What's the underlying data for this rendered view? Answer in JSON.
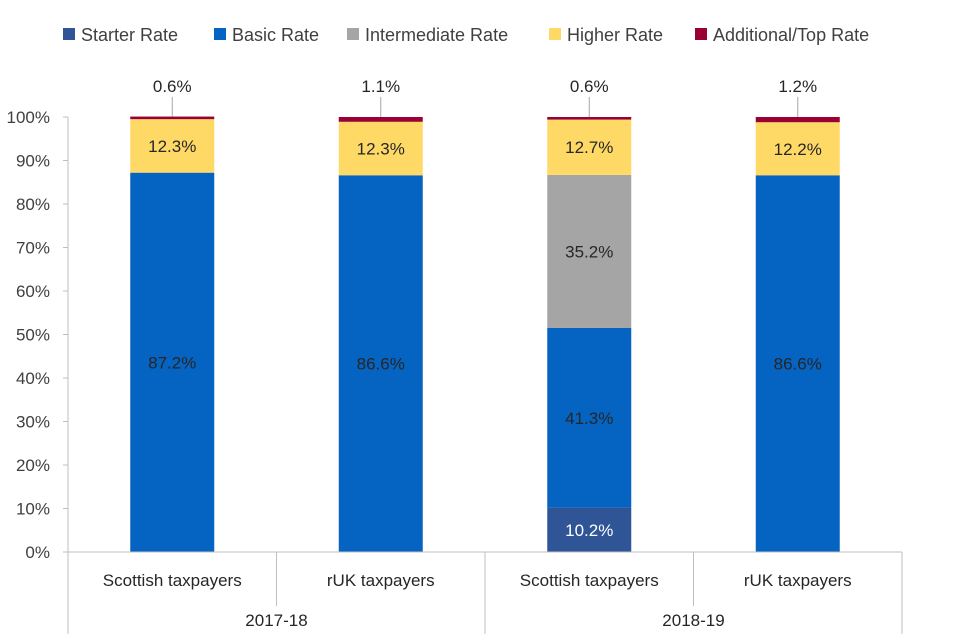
{
  "chart_data": {
    "type": "bar",
    "stacked": true,
    "title": "",
    "xlabel": "",
    "ylabel": "",
    "ylim": [
      0,
      100
    ],
    "y_ticks": [
      "0%",
      "10%",
      "20%",
      "30%",
      "40%",
      "50%",
      "60%",
      "70%",
      "80%",
      "90%",
      "100%"
    ],
    "legend_position": "top",
    "grid": false,
    "categories": [
      "Scottish taxpayers",
      "rUK taxpayers",
      "Scottish taxpayers",
      "rUK taxpayers"
    ],
    "groups": [
      {
        "label": "2017-18",
        "span": [
          0,
          1
        ]
      },
      {
        "label": "2018-19",
        "span": [
          2,
          3
        ]
      }
    ],
    "series": [
      {
        "name": "Starter Rate",
        "color": "#2f5597",
        "values": [
          0,
          0,
          10.2,
          0
        ],
        "labels": [
          "",
          "",
          "10.2%",
          ""
        ]
      },
      {
        "name": "Basic Rate",
        "color": "#0563c1",
        "values": [
          87.2,
          86.6,
          41.3,
          86.6
        ],
        "labels": [
          "87.2%",
          "86.6%",
          "41.3%",
          "86.6%"
        ]
      },
      {
        "name": "Intermediate Rate",
        "color": "#a5a5a5",
        "values": [
          0,
          0,
          35.2,
          0
        ],
        "labels": [
          "",
          "",
          "35.2%",
          ""
        ]
      },
      {
        "name": "Higher Rate",
        "color": "#ffd966",
        "values": [
          12.3,
          12.3,
          12.7,
          12.2
        ],
        "labels": [
          "12.3%",
          "12.3%",
          "12.7%",
          "12.2%"
        ]
      },
      {
        "name": "Additional/Top Rate",
        "color": "#990033",
        "values": [
          0.6,
          1.1,
          0.6,
          1.2
        ],
        "labels": [
          "0.6%",
          "1.1%",
          "0.6%",
          "1.2%"
        ]
      }
    ]
  }
}
